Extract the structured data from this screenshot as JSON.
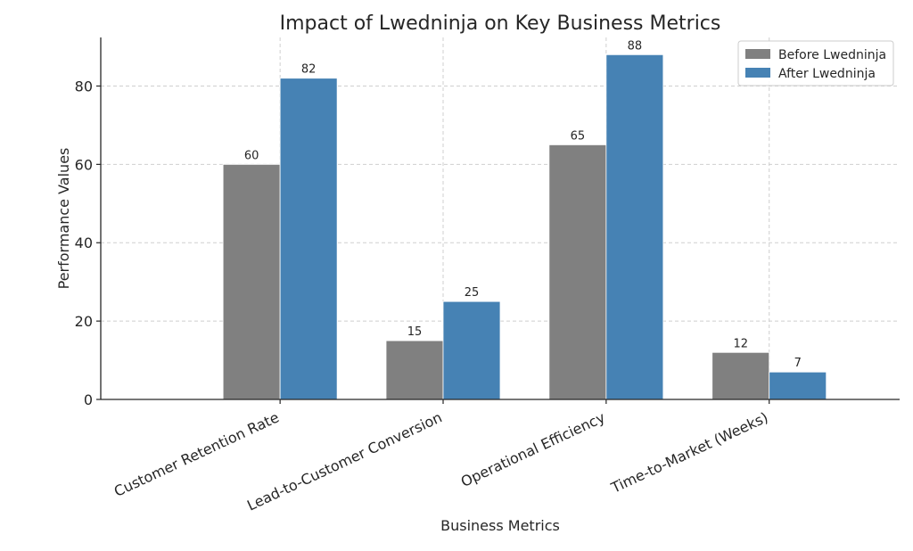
{
  "chart_data": {
    "type": "bar",
    "title": "Impact of Lwedninja on Key Business Metrics",
    "xlabel": "Business Metrics",
    "ylabel": "Performance Values",
    "categories": [
      "Customer Retention Rate",
      "Lead-to-Customer Conversion",
      "Operational Efficiency",
      "Time-to-Market (Weeks)"
    ],
    "series": [
      {
        "name": "Before Lwedninja",
        "values": [
          60,
          15,
          65,
          12
        ],
        "color": "#808080"
      },
      {
        "name": "After Lwedninja",
        "values": [
          82,
          25,
          88,
          7
        ],
        "color": "#4682b4"
      }
    ],
    "ylim": [
      0,
      92.4
    ],
    "yticks": [
      0,
      20,
      40,
      60,
      80
    ],
    "grid": true,
    "legend_position": "top-right"
  }
}
